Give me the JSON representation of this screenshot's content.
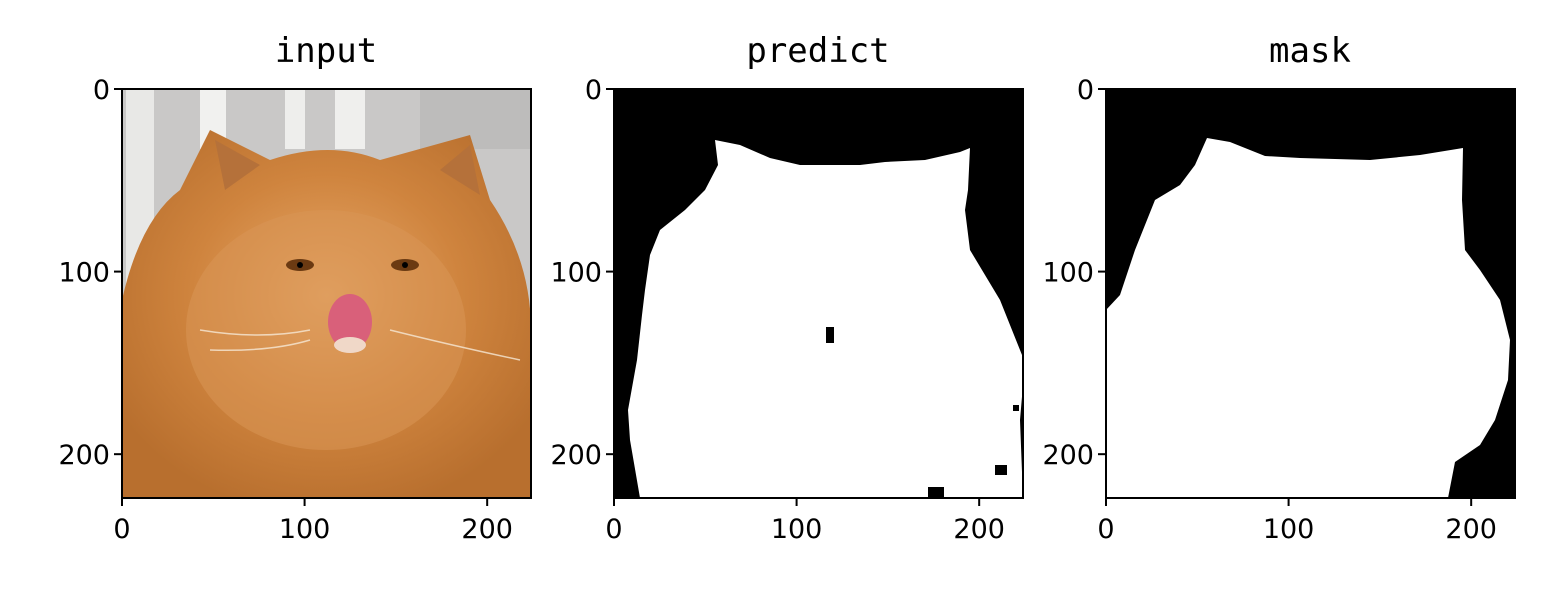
{
  "chart_data": [
    {
      "type": "image",
      "title": "input",
      "xlim": [
        0,
        224
      ],
      "ylim": [
        224,
        0
      ],
      "xticks": [
        0,
        100,
        200
      ],
      "yticks": [
        0,
        100,
        200
      ],
      "xtick_labels": [
        "0",
        "100",
        "200"
      ],
      "ytick_labels": [
        "0",
        "100",
        "200"
      ],
      "content": "photo of an orange long-haired cat licking its nose"
    },
    {
      "type": "image",
      "title": "predict",
      "xlim": [
        0,
        224
      ],
      "ylim": [
        224,
        0
      ],
      "xticks": [
        0,
        100,
        200
      ],
      "yticks": [
        0,
        100,
        200
      ],
      "xtick_labels": [
        "0",
        "100",
        "200"
      ],
      "ytick_labels": [
        "0",
        "100",
        "200"
      ],
      "content": "binary segmentation mask (white foreground on black background)"
    },
    {
      "type": "image",
      "title": "mask",
      "xlim": [
        0,
        224
      ],
      "ylim": [
        224,
        0
      ],
      "xticks": [
        0,
        100,
        200
      ],
      "yticks": [
        0,
        100,
        200
      ],
      "xtick_labels": [
        "0",
        "100",
        "200"
      ],
      "ytick_labels": [
        "0",
        "100",
        "200"
      ],
      "content": "ground-truth binary mask (white foreground on black background)"
    }
  ],
  "colors": {
    "background": "#ffffff",
    "mask_bg": "#000000",
    "mask_fg": "#ffffff",
    "wall": "#c9c8c7",
    "cat_fur": "#cf843e",
    "tongue": "#d9607a"
  }
}
